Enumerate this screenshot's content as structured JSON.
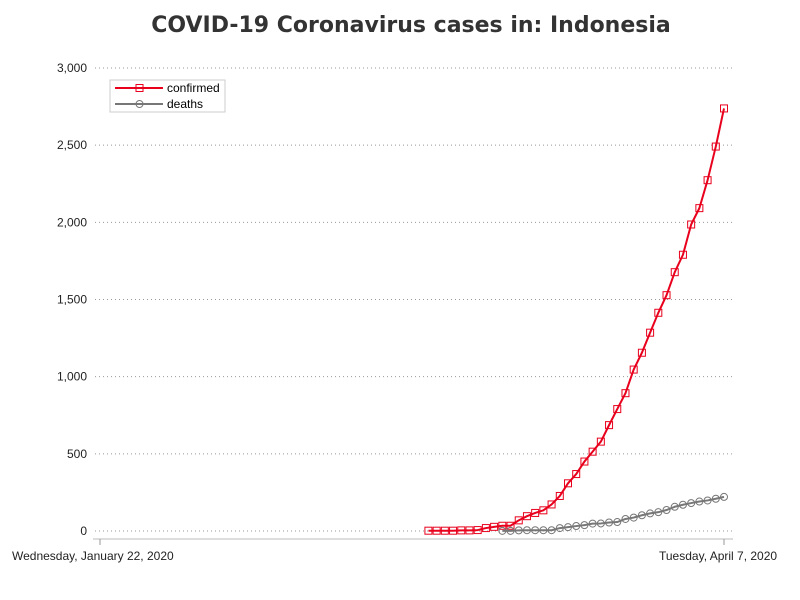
{
  "chart_data": {
    "type": "line",
    "title": "COVID-19 Coronavirus cases in: Indonesia",
    "xlabel": "",
    "ylabel": "",
    "x_range": [
      "2020-01-22",
      "2020-04-07"
    ],
    "x_tick_labels": [
      "Wednesday, January 22, 2020",
      "Tuesday, April 7, 2020"
    ],
    "ylim": [
      0,
      3000
    ],
    "y_ticks": [
      0,
      500,
      1000,
      1500,
      2000,
      2500,
      3000
    ],
    "y_tick_labels": [
      "0",
      "500",
      "1,000",
      "1,500",
      "2,000",
      "2,500",
      "3,000"
    ],
    "grid": true,
    "legend_position": "top-left",
    "series": [
      {
        "name": "confirmed",
        "color": "#e8001c",
        "marker": "square",
        "start_date": "2020-03-02",
        "values": [
          2,
          2,
          2,
          2,
          4,
          4,
          6,
          19,
          27,
          34,
          34,
          69,
          96,
          117,
          134,
          172,
          227,
          309,
          369,
          450,
          514,
          579,
          686,
          790,
          893,
          1046,
          1155,
          1285,
          1414,
          1528,
          1677,
          1790,
          1986,
          2092,
          2273,
          2491,
          2738
        ]
      },
      {
        "name": "deaths",
        "color": "#777777",
        "marker": "circle",
        "start_date": "2020-03-11",
        "values": [
          1,
          1,
          4,
          5,
          5,
          5,
          5,
          19,
          25,
          32,
          38,
          48,
          49,
          55,
          58,
          78,
          87,
          102,
          114,
          122,
          136,
          157,
          170,
          181,
          191,
          198,
          209,
          221
        ]
      }
    ]
  }
}
